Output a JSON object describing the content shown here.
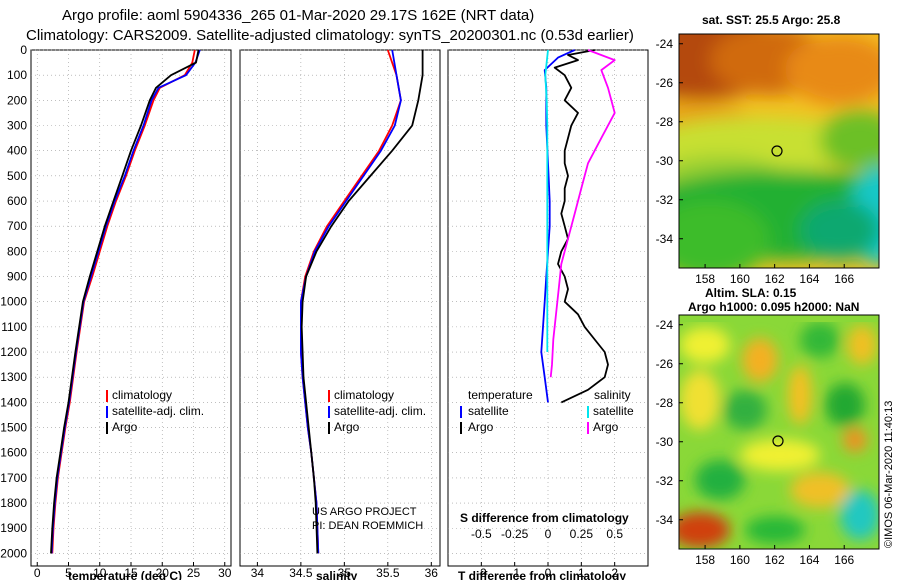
{
  "title_line1": "Argo profile: aoml 5904336_265 01-Mar-2020 29.17S 162E (NRT data)",
  "title_line2": "Climatology: CARS2009. Satellite-adjusted climatology: synTS_20200301.nc (0.53d earlier)",
  "colors": {
    "climatology": "#ff0000",
    "satellite": "#0000ff",
    "argo": "#000000",
    "sat_s": "#00e5ee",
    "argo_s": "#ff00ff"
  },
  "chart_data": [
    {
      "type": "line",
      "xlabel": "temperature (deg C)",
      "xlim": [
        -1,
        31
      ],
      "ylim": [
        0,
        2050
      ],
      "xticks": [
        "0",
        "5",
        "10",
        "15",
        "20",
        "25",
        "30"
      ],
      "yticks": [
        "0",
        "100",
        "200",
        "300",
        "400",
        "500",
        "600",
        "700",
        "800",
        "900",
        "1000",
        "1100",
        "1200",
        "1300",
        "1400",
        "1500",
        "1600",
        "1700",
        "1800",
        "1900",
        "2000"
      ],
      "legend": [
        "climatology",
        "satellite-adj. clim.",
        "Argo"
      ],
      "series": [
        {
          "name": "climatology",
          "x": [
            25.2,
            24.8,
            23.6,
            19.6,
            18.6,
            17.2,
            15.6,
            14.2,
            12.6,
            11.2,
            10.0,
            8.8,
            7.5,
            6.3,
            5.2,
            4.5,
            3.9,
            3.3,
            2.9,
            2.6,
            2.4
          ],
          "y": [
            0,
            50,
            100,
            150,
            200,
            300,
            400,
            500,
            600,
            700,
            800,
            900,
            1000,
            1200,
            1400,
            1500,
            1600,
            1700,
            1800,
            1900,
            2000
          ]
        },
        {
          "name": "satellite",
          "x": [
            26.0,
            25.3,
            23.8,
            19.4,
            18.3,
            17.0,
            15.4,
            14.0,
            12.4,
            11.0,
            9.8,
            8.6,
            7.4,
            6.2,
            5.1,
            4.4,
            3.8,
            3.2,
            2.8,
            2.5,
            2.3
          ],
          "y": [
            0,
            50,
            100,
            150,
            200,
            300,
            400,
            500,
            600,
            700,
            800,
            900,
            1000,
            1200,
            1400,
            1500,
            1600,
            1700,
            1800,
            1900,
            2000
          ]
        },
        {
          "name": "Argo",
          "x": [
            25.8,
            25.4,
            21.4,
            19.0,
            18.0,
            16.6,
            15.0,
            13.6,
            12.2,
            10.8,
            9.6,
            8.4,
            7.3,
            6.1,
            5.0,
            4.3,
            3.7,
            3.1,
            2.7,
            2.4,
            2.2
          ],
          "y": [
            0,
            50,
            100,
            150,
            200,
            300,
            400,
            500,
            600,
            700,
            800,
            900,
            1000,
            1200,
            1400,
            1500,
            1600,
            1700,
            1800,
            1900,
            2000
          ]
        }
      ]
    },
    {
      "type": "line",
      "xlabel": "salinity",
      "xlim": [
        33.8,
        36.1
      ],
      "ylim": [
        0,
        2050
      ],
      "xticks": [
        "34",
        "34.5",
        "35",
        "35.5",
        "36"
      ],
      "legend": [
        "climatology",
        "satellite-adj. clim.",
        "Argo"
      ],
      "series": [
        {
          "name": "climatology",
          "x": [
            35.5,
            35.6,
            35.65,
            35.55,
            35.4,
            35.2,
            35.0,
            34.8,
            34.65,
            34.55,
            34.5,
            34.5,
            34.5,
            34.52,
            34.55,
            34.58,
            34.62,
            34.65,
            34.68,
            34.7
          ],
          "y": [
            0,
            100,
            200,
            300,
            400,
            500,
            600,
            700,
            800,
            900,
            1000,
            1100,
            1200,
            1300,
            1400,
            1500,
            1600,
            1700,
            1800,
            2000
          ]
        },
        {
          "name": "satellite",
          "x": [
            35.55,
            35.6,
            35.65,
            35.58,
            35.42,
            35.22,
            35.02,
            34.82,
            34.66,
            34.56,
            34.5,
            34.5,
            34.5,
            34.52,
            34.55,
            34.58,
            34.62,
            34.65,
            34.68,
            34.7
          ],
          "y": [
            0,
            100,
            200,
            300,
            400,
            500,
            600,
            700,
            800,
            900,
            1000,
            1100,
            1200,
            1300,
            1400,
            1500,
            1600,
            1700,
            1800,
            2000
          ]
        },
        {
          "name": "Argo",
          "x": [
            35.9,
            35.9,
            35.85,
            35.78,
            35.55,
            35.3,
            35.05,
            34.85,
            34.68,
            34.56,
            34.52,
            34.51,
            34.52,
            34.53,
            34.56,
            34.59,
            34.62,
            34.65,
            34.67,
            34.69
          ],
          "y": [
            0,
            100,
            200,
            300,
            400,
            500,
            600,
            700,
            800,
            900,
            1000,
            1100,
            1200,
            1300,
            1400,
            1500,
            1600,
            1700,
            1800,
            2000
          ]
        }
      ],
      "annotation": [
        "US ARGO PROJECT",
        "PI: DEAN ROEMMICH"
      ]
    },
    {
      "type": "line",
      "xlabel": "T difference from climatology",
      "xlabel_top": "S difference from climatology",
      "xlim": [
        -3,
        3
      ],
      "ylim": [
        0,
        2050
      ],
      "xticks": [
        "-2",
        "-1",
        "0",
        "1",
        "2"
      ],
      "xticks_top": [
        "-0.5",
        "-0.25",
        "0",
        "0.25",
        "0.5"
      ],
      "legend_left_title": "temperature",
      "legend_right_title": "salinity",
      "legend": [
        "satellite",
        "Argo",
        "satellite",
        "Argo"
      ],
      "series": [
        {
          "name": "T satellite",
          "x": [
            0.8,
            0.3,
            -0.1,
            -0.05,
            -0.05,
            0.0,
            0.05,
            0.05,
            0.0,
            -0.05,
            -0.1,
            -0.15,
            -0.2,
            -0.1,
            0.0
          ],
          "y": [
            0,
            30,
            80,
            150,
            300,
            450,
            600,
            700,
            800,
            900,
            1000,
            1100,
            1200,
            1300,
            1400
          ]
        },
        {
          "name": "T Argo",
          "x": [
            1.4,
            0.6,
            0.9,
            0.2,
            0.5,
            0.7,
            0.5,
            0.9,
            0.7,
            0.6,
            0.5,
            0.5,
            0.6,
            0.5,
            0.5,
            0.4,
            0.5,
            0.6,
            0.4,
            0.3,
            0.5,
            0.6,
            0.5,
            0.9,
            1.1,
            1.4,
            1.7,
            1.8,
            1.7,
            1.2,
            0.4
          ],
          "y": [
            0,
            20,
            40,
            70,
            100,
            150,
            200,
            250,
            300,
            350,
            400,
            450,
            500,
            550,
            600,
            650,
            700,
            750,
            800,
            850,
            900,
            950,
            1000,
            1050,
            1100,
            1150,
            1200,
            1250,
            1300,
            1350,
            1400
          ]
        },
        {
          "name": "S satellite",
          "x": [
            0.0,
            -0.02,
            -0.01,
            -0.005,
            -0.005,
            -0.005,
            -0.005,
            -0.005,
            -0.005,
            -0.005,
            -0.005,
            -0.005,
            -0.005
          ],
          "y": [
            0,
            100,
            200,
            300,
            400,
            500,
            600,
            700,
            800,
            900,
            1000,
            1100,
            1200
          ]
        },
        {
          "name": "S Argo",
          "x": [
            0.3,
            0.5,
            0.4,
            0.45,
            0.5,
            0.4,
            0.3,
            0.25,
            0.2,
            0.15,
            0.1,
            0.08,
            0.06,
            0.04,
            0.03,
            0.02
          ],
          "y": [
            0,
            40,
            80,
            150,
            250,
            350,
            450,
            550,
            650,
            750,
            850,
            950,
            1050,
            1150,
            1250,
            1300
          ]
        }
      ]
    },
    {
      "type": "heatmap",
      "title": "sat. SST: 25.5 Argo: 25.8",
      "xticks": [
        "158",
        "160",
        "162",
        "164",
        "166"
      ],
      "yticks": [
        "-24",
        "-26",
        "-28",
        "-30",
        "-32",
        "-34"
      ],
      "xlim": [
        156.5,
        168
      ],
      "ylim": [
        -35.5,
        -23.5
      ],
      "marker": {
        "lon": 162,
        "lat": -29.17
      }
    },
    {
      "type": "heatmap",
      "title": "Altim. SLA: 0.15",
      "title_line2": "Argo h1000: 0.095 h2000: NaN",
      "xticks": [
        "158",
        "160",
        "162",
        "164",
        "166"
      ],
      "yticks": [
        "-24",
        "-26",
        "-28",
        "-30",
        "-32",
        "-34"
      ],
      "xlim": [
        156.5,
        168
      ],
      "ylim": [
        -35.5,
        -23.5
      ],
      "marker": {
        "lon": 162,
        "lat": -29.17
      }
    }
  ],
  "credit": "©IMOS 06-Mar-2020 11:40:13"
}
